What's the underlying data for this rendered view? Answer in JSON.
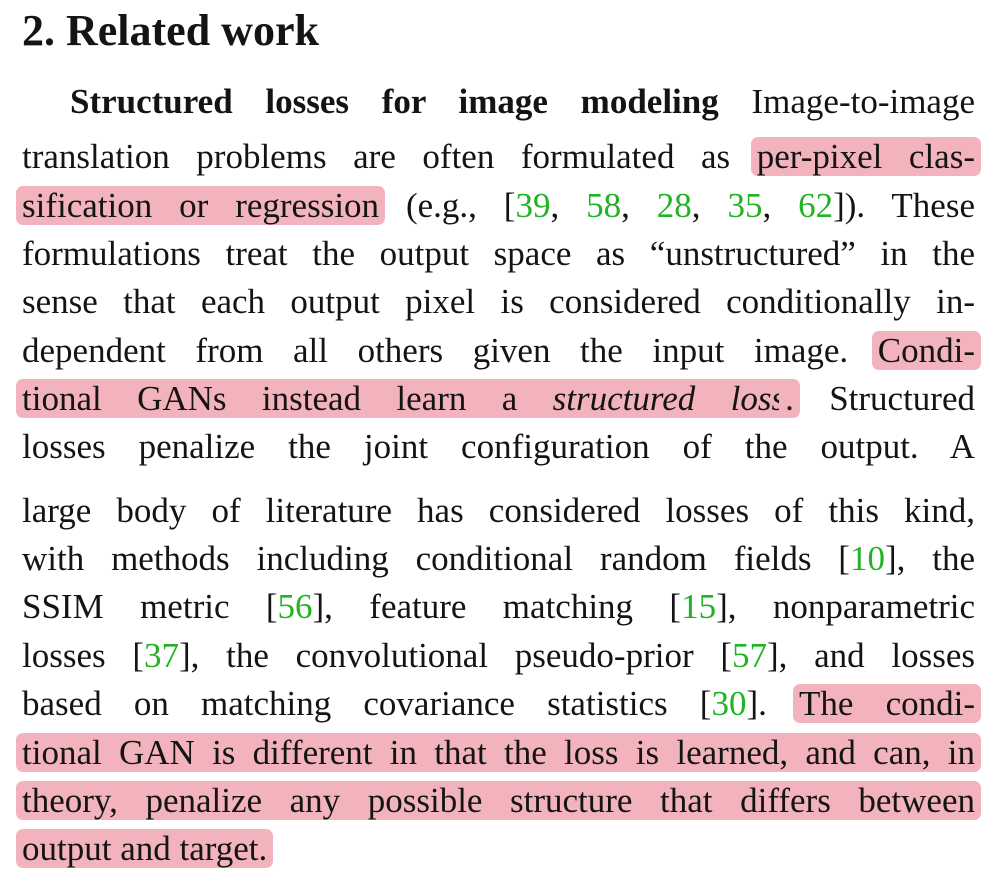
{
  "heading": "2. Related work",
  "lines": [
    [
      {
        "text": "Structured losses for image modeling",
        "style": "bold"
      },
      {
        "text": " Image-to-image"
      }
    ],
    [
      {
        "text": "translation problems are often formulated as "
      },
      {
        "text": "per-pixel clas-",
        "style": "highlight"
      }
    ],
    [
      {
        "text": "sification or regression",
        "style": "highlight"
      },
      {
        "text": " (e.g.,  ["
      },
      {
        "text": "39",
        "style": "cite"
      },
      {
        "text": ", "
      },
      {
        "text": "58",
        "style": "cite"
      },
      {
        "text": ", "
      },
      {
        "text": "28",
        "style": "cite"
      },
      {
        "text": ", "
      },
      {
        "text": "35",
        "style": "cite"
      },
      {
        "text": ", "
      },
      {
        "text": "62",
        "style": "cite"
      },
      {
        "text": "]).  These"
      }
    ],
    [
      {
        "text": "formulations treat the output space as “unstructured” in the"
      }
    ],
    [
      {
        "text": "sense that each output pixel is considered conditionally in-"
      }
    ],
    [
      {
        "text": "dependent from all others given the input image. "
      },
      {
        "text": "Condi-",
        "style": "highlight"
      }
    ],
    [
      {
        "text": "tional GANs instead learn a ",
        "style": "highlight"
      },
      {
        "text": "structured loss",
        "style": "highlight-italic"
      },
      {
        "text": ".",
        "style": "highlight"
      },
      {
        "text": "  Structured"
      }
    ],
    [
      {
        "text": "losses penalize the joint configuration of the output.  A"
      }
    ],
    [
      {
        "text": "large body of literature has considered losses of this kind,"
      }
    ],
    [
      {
        "text": "with methods including conditional random fields ["
      },
      {
        "text": "10",
        "style": "cite"
      },
      {
        "text": "], the"
      }
    ],
    [
      {
        "text": "SSIM metric ["
      },
      {
        "text": "56",
        "style": "cite"
      },
      {
        "text": "], feature matching ["
      },
      {
        "text": "15",
        "style": "cite"
      },
      {
        "text": "], nonparametric"
      }
    ],
    [
      {
        "text": "losses ["
      },
      {
        "text": "37",
        "style": "cite"
      },
      {
        "text": "], the convolutional pseudo-prior ["
      },
      {
        "text": "57",
        "style": "cite"
      },
      {
        "text": "], and losses"
      }
    ],
    [
      {
        "text": "based on matching covariance statistics ["
      },
      {
        "text": "30",
        "style": "cite"
      },
      {
        "text": "]. "
      },
      {
        "text": "The condi-",
        "style": "highlight"
      }
    ],
    [
      {
        "text": "tional GAN is different in that the loss is learned, and can, in",
        "style": "highlight"
      }
    ],
    [
      {
        "text": "theory, penalize any possible structure that differs between",
        "style": "highlight"
      }
    ],
    [
      {
        "text": "output and target.",
        "style": "highlight"
      }
    ]
  ]
}
